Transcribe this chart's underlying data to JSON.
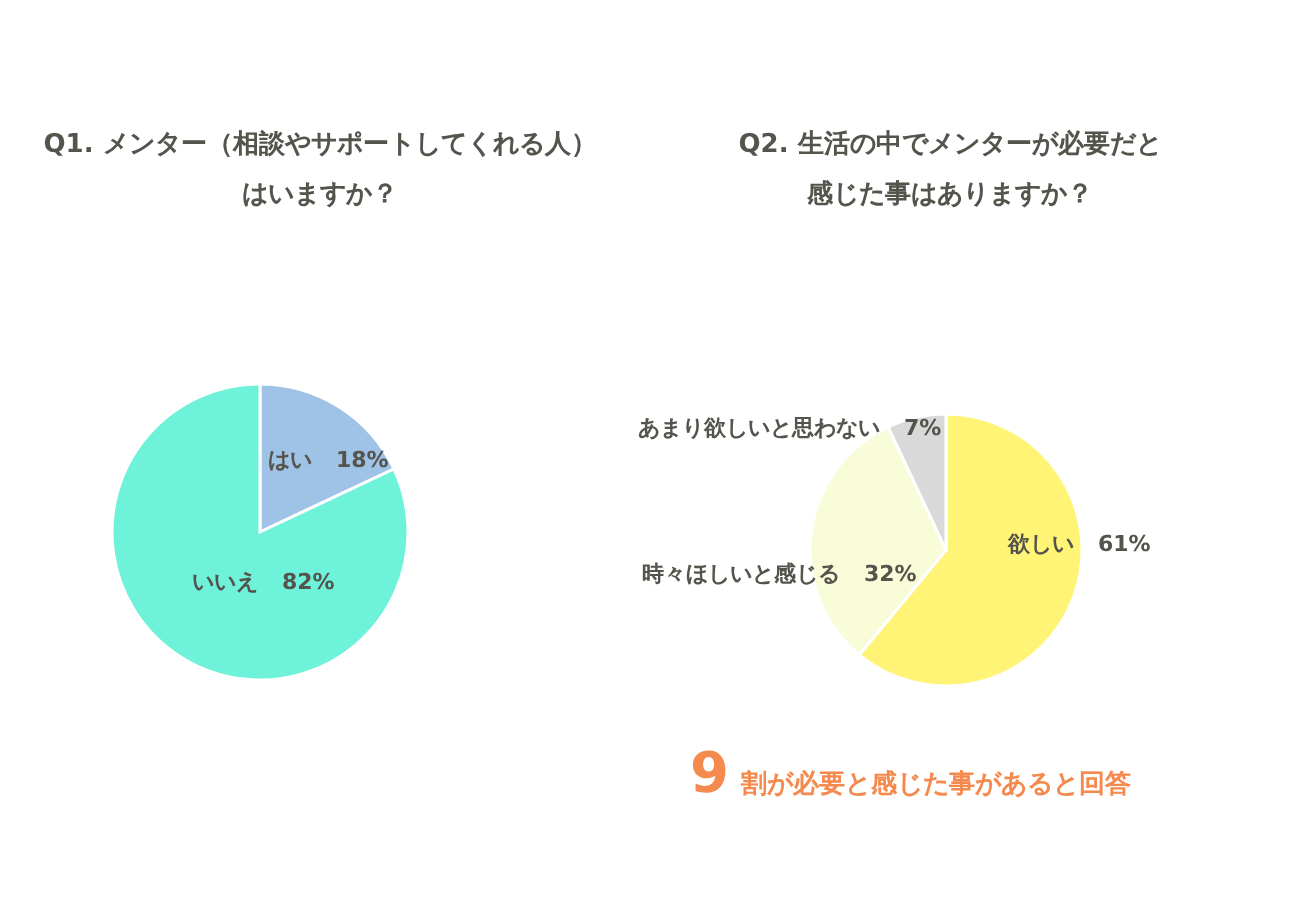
{
  "chart_data": [
    {
      "type": "pie",
      "title": "Q1. メンター（相談やサポートしてくれる人）はいますか？",
      "categories": [
        "はい",
        "いいえ"
      ],
      "values": [
        18,
        82
      ],
      "colors": [
        "#9fc3e6",
        "#6ef2da"
      ],
      "value_labels": [
        "18%",
        "82%"
      ]
    },
    {
      "type": "pie",
      "title": "Q2. 生活の中でメンターが必要だと感じた事はありますか？",
      "categories": [
        "欲しい",
        "時々ほしいと感じる",
        "あまり欲しいと思わない"
      ],
      "values": [
        61,
        32,
        7
      ],
      "colors": [
        "#fff475",
        "#f9fcd8",
        "#d9d9d9"
      ],
      "value_labels": [
        "61%",
        "32%",
        "7%"
      ],
      "annotations": [
        "9割が必要と感じた事があると回答"
      ]
    }
  ]
}
